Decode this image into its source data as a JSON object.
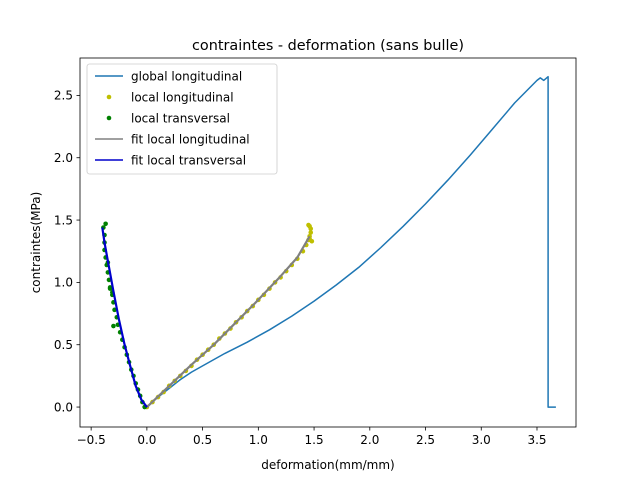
{
  "chart_data": {
    "type": "line",
    "title": "contraintes - deformation (sans bulle)",
    "xlabel": "deformation(mm/mm)",
    "ylabel": "contraintes(MPa)",
    "xlim": [
      -0.6,
      3.85
    ],
    "ylim": [
      -0.16,
      2.8
    ],
    "xticks": [
      -0.5,
      0.0,
      0.5,
      1.0,
      1.5,
      2.0,
      2.5,
      3.0,
      3.5
    ],
    "xtick_labels": [
      "−0.5",
      "0.0",
      "0.5",
      "1.0",
      "1.5",
      "2.0",
      "2.5",
      "3.0",
      "3.5"
    ],
    "yticks": [
      0.0,
      0.5,
      1.0,
      1.5,
      2.0,
      2.5
    ],
    "ytick_labels": [
      "0.0",
      "0.5",
      "1.0",
      "1.5",
      "2.0",
      "2.5"
    ],
    "grid": false,
    "legend_position": "top-left",
    "series": [
      {
        "name": "global longitudinal",
        "kind": "line",
        "color": "#1f77b4",
        "x": [
          0.0,
          0.1,
          0.2,
          0.3,
          0.4,
          0.5,
          0.7,
          0.9,
          1.1,
          1.3,
          1.5,
          1.7,
          1.9,
          2.1,
          2.3,
          2.5,
          2.7,
          2.9,
          3.1,
          3.3,
          3.5,
          3.53,
          3.56,
          3.6,
          3.6,
          3.67
        ],
        "y": [
          0.0,
          0.08,
          0.15,
          0.22,
          0.28,
          0.33,
          0.43,
          0.52,
          0.62,
          0.73,
          0.85,
          0.98,
          1.12,
          1.28,
          1.45,
          1.63,
          1.82,
          2.02,
          2.23,
          2.44,
          2.62,
          2.64,
          2.62,
          2.65,
          0.0,
          0.0
        ]
      },
      {
        "name": "local longitudinal",
        "kind": "points",
        "color": "#bfbf00",
        "x": [
          0.0,
          0.05,
          0.1,
          0.15,
          0.2,
          0.25,
          0.3,
          0.35,
          0.4,
          0.45,
          0.5,
          0.55,
          0.6,
          0.65,
          0.7,
          0.75,
          0.8,
          0.85,
          0.9,
          0.95,
          1.0,
          1.05,
          1.1,
          1.15,
          1.2,
          1.25,
          1.3,
          1.35,
          1.4,
          1.43,
          1.45,
          1.46,
          1.47,
          1.47,
          1.46,
          1.45,
          1.46,
          1.48
        ],
        "y": [
          0.0,
          0.04,
          0.08,
          0.12,
          0.17,
          0.21,
          0.25,
          0.29,
          0.33,
          0.38,
          0.42,
          0.46,
          0.5,
          0.55,
          0.59,
          0.63,
          0.68,
          0.72,
          0.77,
          0.81,
          0.86,
          0.9,
          0.95,
          1.0,
          1.04,
          1.09,
          1.14,
          1.19,
          1.25,
          1.3,
          1.34,
          1.37,
          1.4,
          1.43,
          1.45,
          1.46,
          1.35,
          1.33
        ]
      },
      {
        "name": "local transversal",
        "kind": "points",
        "color": "#008000",
        "x": [
          -0.02,
          -0.04,
          -0.06,
          -0.08,
          -0.1,
          -0.12,
          -0.14,
          -0.16,
          -0.18,
          -0.2,
          -0.22,
          -0.24,
          -0.26,
          -0.27,
          -0.29,
          -0.3,
          -0.31,
          -0.33,
          -0.34,
          -0.35,
          -0.36,
          -0.37,
          -0.38,
          -0.38,
          -0.38,
          -0.39,
          -0.37,
          -0.35,
          -0.33,
          -0.31,
          -0.3
        ],
        "y": [
          0.0,
          0.04,
          0.09,
          0.14,
          0.19,
          0.25,
          0.3,
          0.36,
          0.42,
          0.48,
          0.54,
          0.6,
          0.66,
          0.72,
          0.78,
          0.84,
          0.9,
          0.96,
          1.02,
          1.08,
          1.14,
          1.2,
          1.26,
          1.32,
          1.38,
          1.44,
          1.47,
          1.16,
          0.95,
          0.92,
          0.65
        ]
      },
      {
        "name": "fit local longitudinal",
        "kind": "line",
        "color": "#808080",
        "x": [
          0.0,
          0.2,
          0.4,
          0.6,
          0.8,
          1.0,
          1.2,
          1.35,
          1.46
        ],
        "y": [
          0.0,
          0.17,
          0.34,
          0.5,
          0.68,
          0.86,
          1.05,
          1.2,
          1.37
        ]
      },
      {
        "name": "fit local transversal",
        "kind": "line",
        "color": "#0000cc",
        "x": [
          0.0,
          -0.05,
          -0.1,
          -0.15,
          -0.2,
          -0.25,
          -0.3,
          -0.35,
          -0.38,
          -0.4
        ],
        "y": [
          0.0,
          0.06,
          0.17,
          0.33,
          0.5,
          0.7,
          0.93,
          1.17,
          1.32,
          1.44
        ]
      }
    ]
  }
}
